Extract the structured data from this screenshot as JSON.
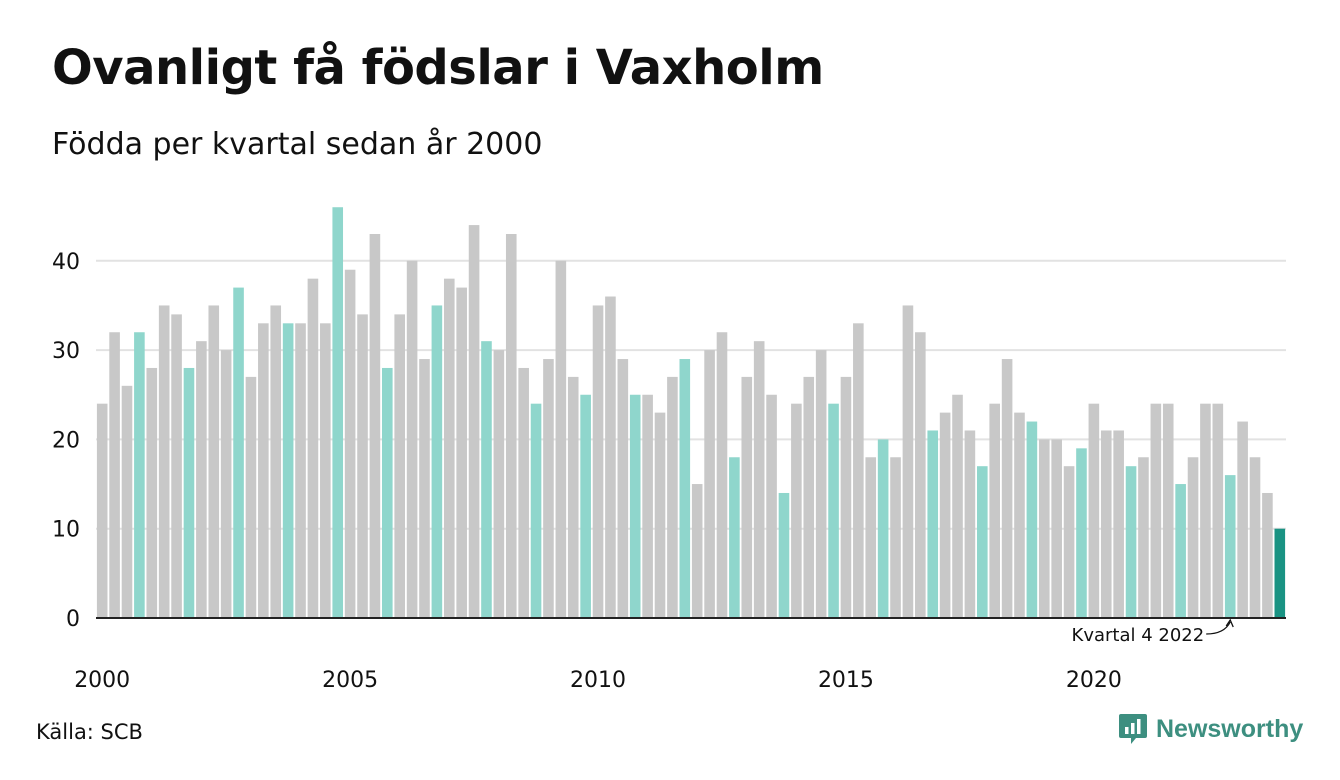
{
  "title": "Ovanligt få födslar i Vaxholm",
  "subtitle": "Födda per kvartal sedan år 2000",
  "source": "Källa: SCB",
  "brand": {
    "name": "Newsworthy",
    "color": "#3d8f80"
  },
  "colors": {
    "normal": "#c8c8c8",
    "q4": "#8fd6cc",
    "latest": "#1a9383",
    "grid": "#e2e2e2",
    "axis": "#222222"
  },
  "chart_data": {
    "type": "bar",
    "title": "Ovanligt få födslar i Vaxholm",
    "subtitle": "Födda per kvartal sedan år 2000",
    "x_start_year": 2000,
    "periods_per_year": 4,
    "x_ticks": [
      2000,
      2005,
      2010,
      2015,
      2020
    ],
    "y_ticks": [
      0,
      10,
      20,
      30,
      40
    ],
    "ylim": [
      0,
      46
    ],
    "grid": true,
    "highlight": "Q4 quarters highlighted; latest quarter emphasized",
    "annotation": {
      "text": "Kvartal 4 2022",
      "target_index": 91
    },
    "values": [
      24,
      32,
      26,
      32,
      28,
      35,
      34,
      28,
      31,
      35,
      30,
      37,
      27,
      33,
      35,
      33,
      33,
      38,
      33,
      46,
      39,
      34,
      43,
      28,
      34,
      40,
      29,
      35,
      38,
      37,
      44,
      31,
      30,
      43,
      28,
      24,
      29,
      40,
      27,
      25,
      35,
      36,
      29,
      25,
      25,
      23,
      27,
      29,
      15,
      30,
      32,
      18,
      27,
      31,
      25,
      14,
      24,
      27,
      30,
      24,
      27,
      33,
      18,
      20,
      18,
      35,
      32,
      21,
      23,
      25,
      21,
      17,
      24,
      29,
      23,
      22,
      20,
      20,
      17,
      19,
      24,
      21,
      21,
      17,
      18,
      24,
      24,
      15,
      18,
      24,
      24,
      16,
      22,
      18,
      14,
      10
    ]
  }
}
